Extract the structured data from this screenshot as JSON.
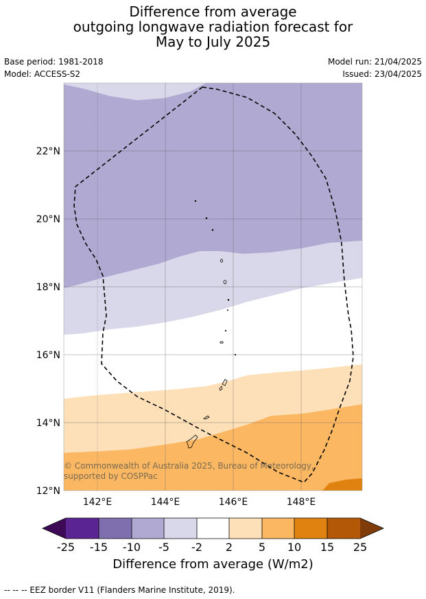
{
  "title": {
    "line1": "Difference from average",
    "line2": "outgoing longwave radiation forecast for",
    "line3": "May to July 2025"
  },
  "meta": {
    "base_period": "Base period: 1981-2018",
    "model": "Model: ACCESS-S2",
    "model_run": "Model run: 21/04/2025",
    "issued": "Issued: 23/04/2025"
  },
  "map": {
    "lon_labels": [
      "142°E",
      "144°E",
      "146°E",
      "148°E"
    ],
    "lat_labels": [
      "22°N",
      "20°N",
      "18°N",
      "16°N",
      "14°N",
      "12°N"
    ],
    "copyright": "© Commonwealth of Australia 2025, Bureau of Meteorology, supported by COSPPac",
    "zone_colors": {
      "minus10_to_minus5": "#b0aad2",
      "minus5_to_minus2": "#d8d8ea",
      "minus2_to_2": "#ffffff",
      "2_to_5": "#fde0b8",
      "5_to_10": "#fbb762",
      "10_to_15": "#e0820f"
    }
  },
  "colorbar": {
    "colors": [
      "#3e0a55",
      "#5a2592",
      "#7f6fae",
      "#b0aad2",
      "#d8d8ea",
      "#ffffff",
      "#fde0b8",
      "#fbb762",
      "#e0820f",
      "#b35806",
      "#7f3b08"
    ],
    "ticks": [
      "-25",
      "-15",
      "-10",
      "-5",
      "-2",
      "2",
      "5",
      "10",
      "15",
      "25"
    ],
    "label": "Difference from average (W/m2)"
  },
  "footnote": "--  --  -- EEZ border V11 (Flanders Marine Institute, 2019)."
}
